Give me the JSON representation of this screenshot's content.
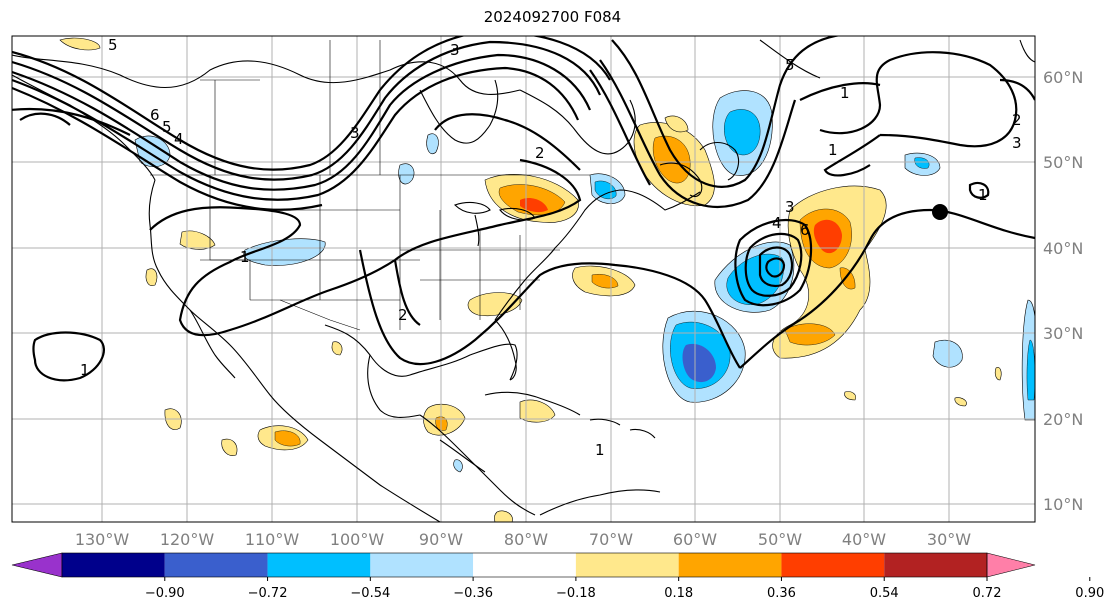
{
  "title": "2024092700 F084",
  "map": {
    "lon_labels": [
      "130°W",
      "120°W",
      "110°W",
      "100°W",
      "90°W",
      "80°W",
      "70°W",
      "60°W",
      "50°W",
      "40°W",
      "30°W"
    ],
    "lat_labels": [
      "60°N",
      "50°N",
      "40°N",
      "30°N",
      "20°N",
      "10°N"
    ],
    "contour_labels": [
      "5",
      "3",
      "6",
      "5",
      "4",
      "3",
      "2",
      "1",
      "1",
      "2",
      "1",
      "3",
      "4",
      "6",
      "5",
      "3",
      "2",
      "1",
      "1",
      "1"
    ],
    "grid": true
  },
  "colorbar": {
    "ticks": [
      "−0.90",
      "−0.72",
      "−0.54",
      "−0.36",
      "−0.18",
      "0.18",
      "0.36",
      "0.54",
      "0.72",
      "0.90"
    ],
    "colors": [
      "#9932cc",
      "#00008b",
      "#3a5fcd",
      "#00bfff",
      "#b0e2ff",
      "#ffffff",
      "#ffe88c",
      "#ffa500",
      "#ff3e00",
      "#b22222",
      "#ff7fa8"
    ]
  },
  "colors": {
    "light_blue": "#b0e2ff",
    "blue": "#00bfff",
    "dark_blue": "#3a5fcd",
    "yellow": "#ffe88c",
    "orange": "#ffa500",
    "red_orange": "#ff3e00"
  }
}
